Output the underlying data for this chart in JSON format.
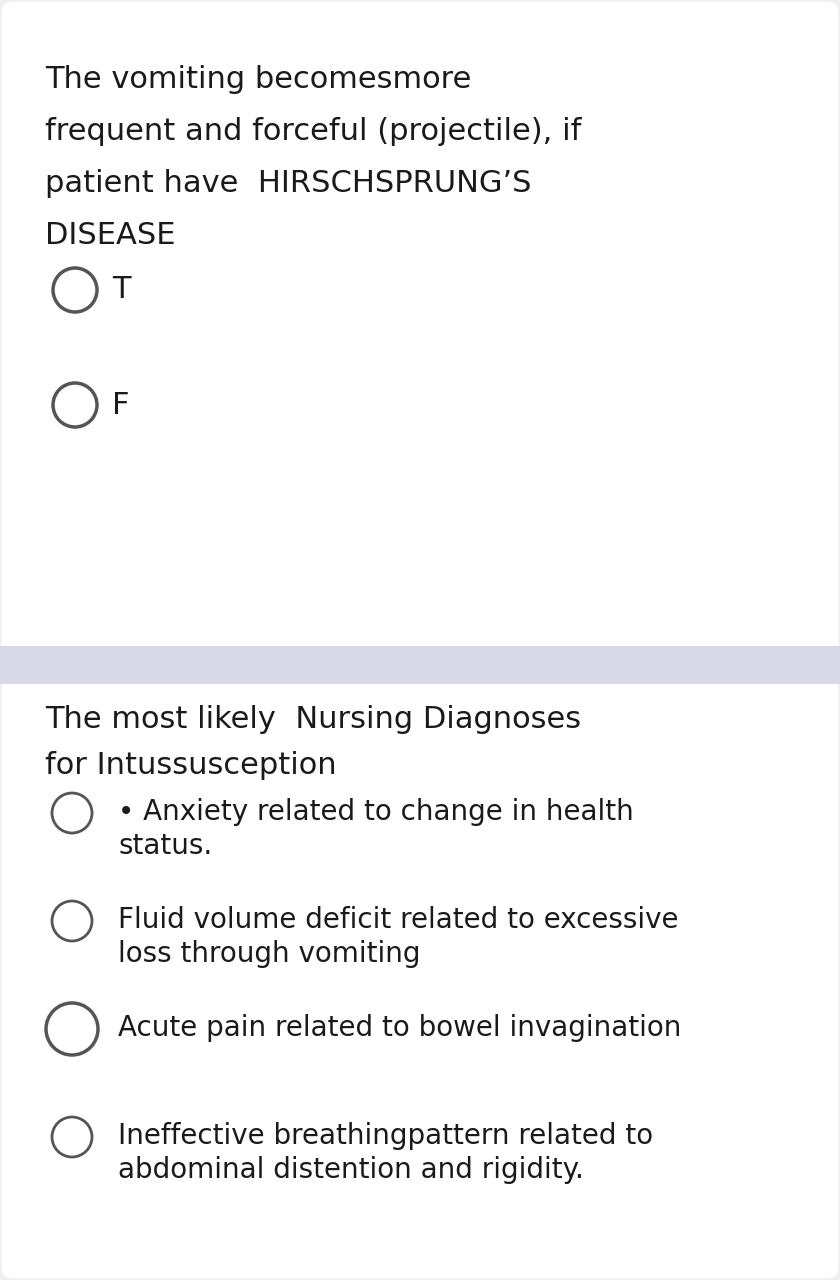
{
  "bg_color": "#f0f0f5",
  "section1_bg": "#ffffff",
  "section2_bg": "#ffffff",
  "divider_color": "#d8d8e8",
  "text_color": "#1a1a1a",
  "circle_color": "#555555",
  "section1_text_lines": [
    "The vomiting becomesmore",
    "frequent and forceful (projectile), if",
    "patient have  HIRSCHSPRUNG’S",
    "DISEASE"
  ],
  "section1_options": [
    {
      "label": "T"
    },
    {
      "label": "F"
    }
  ],
  "section2_title_lines": [
    "The most likely  Nursing Diagnoses",
    "for Intussusception"
  ],
  "section2_items": [
    {
      "line1": "• Anxiety related to change in health",
      "line2": "status.",
      "circle_size": "small"
    },
    {
      "line1": "Fluid volume deficit related to excessive",
      "line2": "loss through vomiting",
      "circle_size": "small"
    },
    {
      "line1": "Acute pain related to bowel invagination",
      "line2": "",
      "circle_size": "large"
    },
    {
      "line1": "Ineffective breathingpattern related to",
      "line2": "abdominal distention and rigidity.",
      "circle_size": "small"
    }
  ],
  "font_size_main": 22,
  "font_size_option": 22,
  "font_size_title": 22,
  "font_size_item": 20
}
